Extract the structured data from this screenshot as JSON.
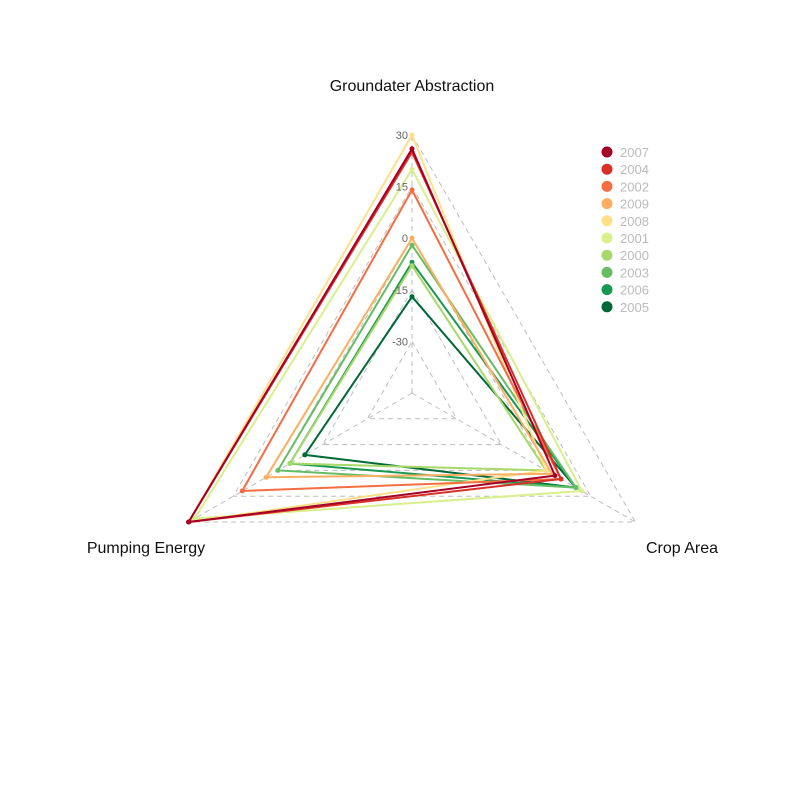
{
  "chart_data": {
    "type": "radar",
    "axes": [
      "Groundater Abstraction",
      "Crop Area",
      "Pumping Energy"
    ],
    "rlim": [
      -45,
      30
    ],
    "ticks": [
      30,
      15,
      0,
      -15,
      -30
    ],
    "tick_labels": [
      "30",
      "15",
      "0",
      "-15",
      "-30"
    ],
    "grid": true,
    "legend_position": "top-right",
    "series": [
      {
        "name": "2007",
        "color": "#a50026",
        "values": [
          26,
          3,
          30
        ]
      },
      {
        "name": "2004",
        "color": "#d73027",
        "values": [
          25,
          5,
          30
        ]
      },
      {
        "name": "2002",
        "color": "#f46d43",
        "values": [
          14,
          5,
          12
        ]
      },
      {
        "name": "2009",
        "color": "#fdae61",
        "values": [
          0,
          2,
          4
        ]
      },
      {
        "name": "2008",
        "color": "#fee08b",
        "values": [
          30,
          0,
          30
        ]
      },
      {
        "name": "2001",
        "color": "#d9ef8b",
        "values": [
          20,
          12,
          28
        ]
      },
      {
        "name": "2000",
        "color": "#a6d96a",
        "values": [
          -8,
          0,
          -4
        ]
      },
      {
        "name": "2003",
        "color": "#66bd63",
        "values": [
          -2,
          10,
          0
        ]
      },
      {
        "name": "2006",
        "color": "#1a9850",
        "values": [
          -7,
          10,
          -4
        ]
      },
      {
        "name": "2005",
        "color": "#006837",
        "values": [
          -17,
          10,
          -9
        ]
      }
    ]
  }
}
